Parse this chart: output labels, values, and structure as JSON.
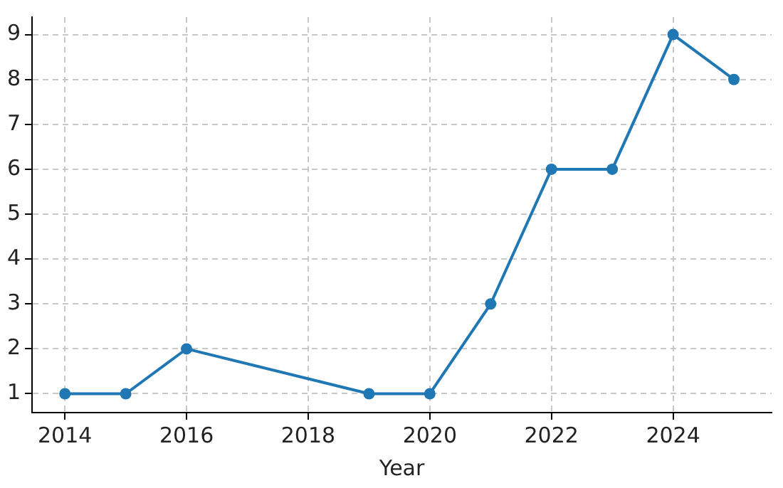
{
  "chart_data": {
    "type": "line",
    "xlabel": "Year",
    "x": [
      2014,
      2015,
      2016,
      2019,
      2020,
      2021,
      2022,
      2023,
      2024,
      2025
    ],
    "series": [
      {
        "color": "#1f77b4",
        "values": [
          1,
          1,
          2,
          1,
          1,
          3,
          6,
          6,
          9,
          8
        ]
      }
    ],
    "xlim": [
      2013.46,
      2025.62
    ],
    "xticks": [
      2014,
      2016,
      2018,
      2020,
      2022,
      2024
    ],
    "ylim": [
      0.58,
      9.39
    ],
    "yticks": [
      1,
      2,
      3,
      4,
      5,
      6,
      7,
      8,
      9
    ],
    "grid": true,
    "marker": "circle",
    "line_style": "solid",
    "legend": false
  }
}
